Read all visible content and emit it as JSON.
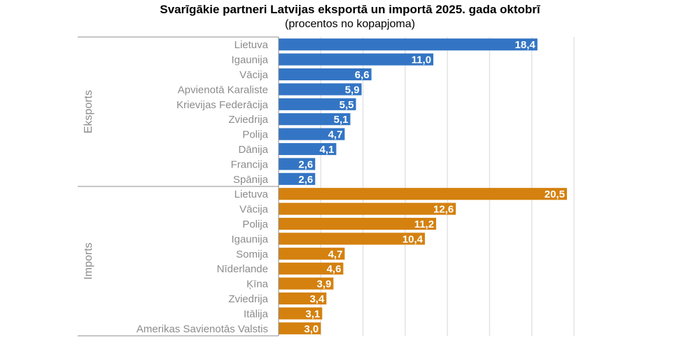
{
  "chart_data": {
    "type": "bar",
    "orientation": "horizontal",
    "title": "Svarīgākie partneri Latvijas eksportā un importā 2025. gada oktobrī",
    "subtitle": "(procentos no kopapjoma)",
    "xlabel": "",
    "ylabel": "",
    "xlim": [
      0,
      21
    ],
    "grid": true,
    "grid_step": 3,
    "legend": "none",
    "groups": [
      {
        "name": "Eksports",
        "color": "#3375c4",
        "categories": [
          "Lietuva",
          "Igaunija",
          "Vācija",
          "Apvienotā Karaliste",
          "Krievijas Federācija",
          "Zviedrija",
          "Polija",
          "Dānija",
          "Francija",
          "Spānija"
        ],
        "values": [
          18.4,
          11.0,
          6.6,
          5.9,
          5.5,
          5.1,
          4.7,
          4.1,
          2.6,
          2.6
        ],
        "labels": [
          "18,4",
          "11,0",
          "6,6",
          "5,9",
          "5,5",
          "5,1",
          "4,7",
          "4,1",
          "2,6",
          "2,6"
        ]
      },
      {
        "name": "Imports",
        "color": "#d4810f",
        "categories": [
          "Lietuva",
          "Vācija",
          "Polija",
          "Igaunija",
          "Somija",
          "Nīderlande",
          "Ķīna",
          "Zviedrija",
          "Itālija",
          "Amerikas Savienotās Valstis"
        ],
        "values": [
          20.5,
          12.6,
          11.2,
          10.4,
          4.7,
          4.6,
          3.9,
          3.4,
          3.1,
          3.0
        ],
        "labels": [
          "20,5",
          "12,6",
          "11,2",
          "10,4",
          "4,7",
          "4,6",
          "3,9",
          "3,4",
          "3,1",
          "3,0"
        ]
      }
    ]
  }
}
